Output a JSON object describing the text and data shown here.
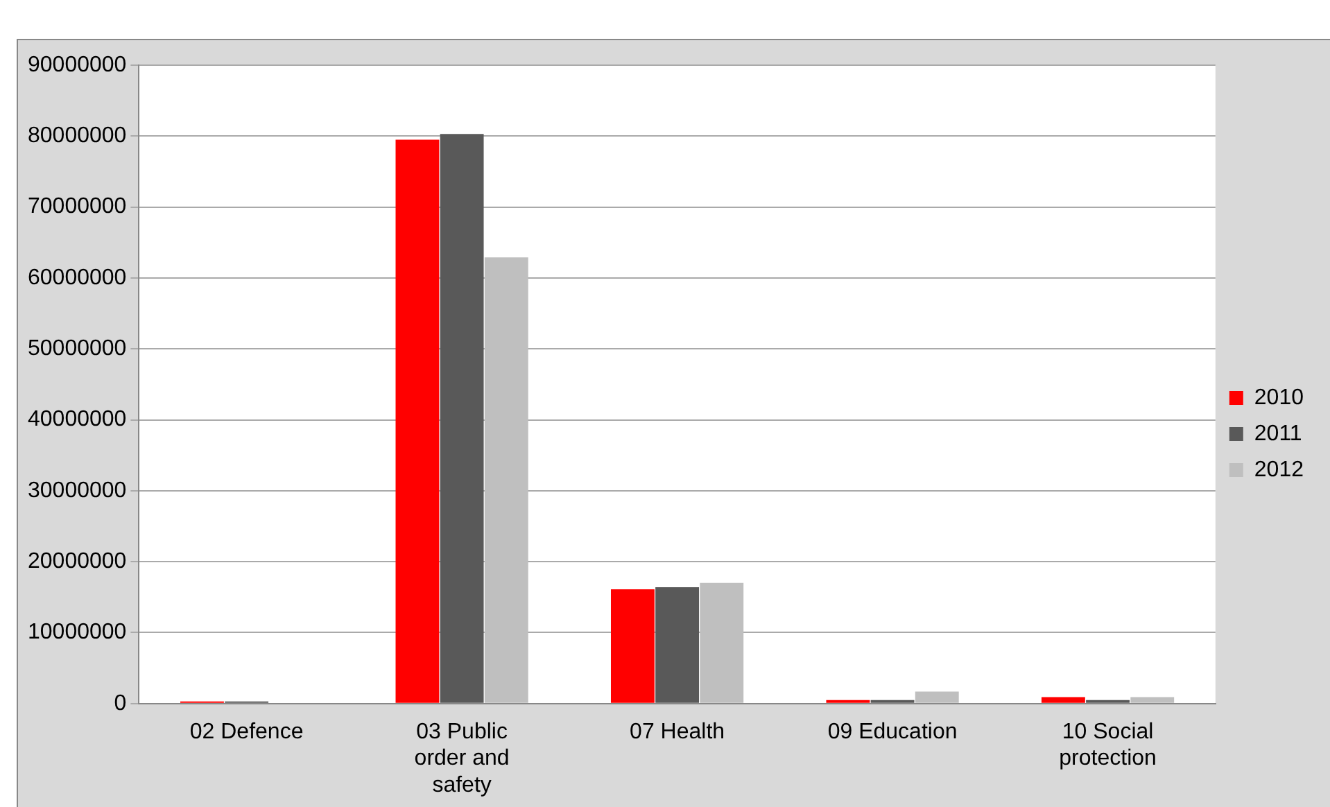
{
  "chart_data": {
    "type": "bar",
    "categories": [
      "02 Defence",
      "03 Public order and safety",
      "07 Health",
      "09 Education",
      "10 Social protection"
    ],
    "series": [
      {
        "name": "2010",
        "color": "#ff0000",
        "values": [
          300000,
          79500000,
          16100000,
          500000,
          900000
        ]
      },
      {
        "name": "2011",
        "color": "#595959",
        "values": [
          300000,
          80300000,
          16400000,
          500000,
          500000
        ]
      },
      {
        "name": "2012",
        "color": "#bfbfbf",
        "values": [
          0,
          62900000,
          17000000,
          1700000,
          900000
        ]
      }
    ],
    "ylim": [
      0,
      90000000
    ],
    "yticks": [
      0,
      10000000,
      20000000,
      30000000,
      40000000,
      50000000,
      60000000,
      70000000,
      80000000,
      90000000
    ],
    "grid": "y",
    "legend": "right"
  }
}
